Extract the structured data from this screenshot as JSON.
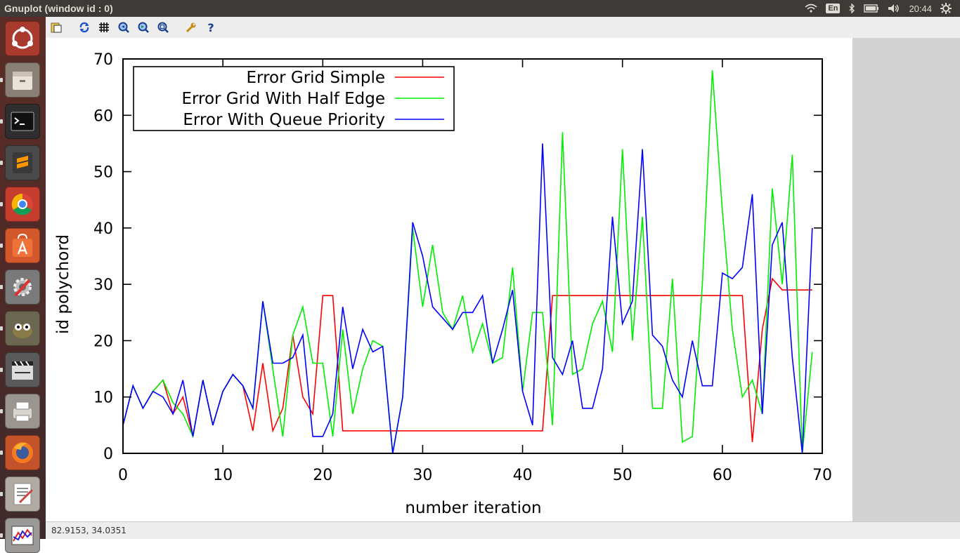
{
  "window": {
    "title": "Gnuplot (window id : 0)"
  },
  "tray": {
    "keyboard": "En",
    "clock": "20:44"
  },
  "launcher": {
    "items": [
      {
        "name": "dash-home-icon",
        "bg": "#a93b2e"
      },
      {
        "name": "files-icon",
        "bg": "#8a7f75"
      },
      {
        "name": "terminal-icon",
        "bg": "#2e2e2e"
      },
      {
        "name": "sublime-text-icon",
        "bg": "#4a4a4a"
      },
      {
        "name": "chrome-icon",
        "bg": "#c53d2f"
      },
      {
        "name": "software-center-icon",
        "bg": "#d4582c"
      },
      {
        "name": "system-settings-icon",
        "bg": "#7a7a7a"
      },
      {
        "name": "gimp-icon",
        "bg": "#6b6650"
      },
      {
        "name": "video-editor-icon",
        "bg": "#5a5a5a"
      },
      {
        "name": "printer-icon",
        "bg": "#9a9590"
      },
      {
        "name": "firefox-icon",
        "bg": "#c4532a"
      },
      {
        "name": "text-editor-icon",
        "bg": "#b0aaa2"
      },
      {
        "name": "gnuplot-icon",
        "bg": "#9b9a98"
      }
    ]
  },
  "toolbar": {
    "buttons": [
      {
        "name": "copy-to-clipboard-icon"
      },
      {
        "name": "replot-icon"
      },
      {
        "name": "grid-icon"
      },
      {
        "name": "zoom-previous-icon"
      },
      {
        "name": "zoom-next-icon"
      },
      {
        "name": "autoscale-icon"
      },
      {
        "name": "config-wrench-icon"
      },
      {
        "name": "help-icon"
      }
    ]
  },
  "statusbar": {
    "coords": "82.9153,  34.0351"
  },
  "chart_data": {
    "type": "line",
    "title": "",
    "xlabel": "number iteration",
    "ylabel": "id polychord",
    "xlim": [
      0,
      70
    ],
    "ylim": [
      0,
      70
    ],
    "xticks": [
      "0",
      "10",
      "20",
      "30",
      "40",
      "50",
      "60",
      "70"
    ],
    "yticks": [
      "0",
      "10",
      "20",
      "30",
      "40",
      "50",
      "60",
      "70"
    ],
    "grid": false,
    "legend": "top-left",
    "x": [
      0,
      1,
      2,
      3,
      4,
      5,
      6,
      7,
      8,
      9,
      10,
      11,
      12,
      13,
      14,
      15,
      16,
      17,
      18,
      19,
      20,
      21,
      22,
      23,
      24,
      25,
      26,
      27,
      28,
      29,
      30,
      31,
      32,
      33,
      34,
      35,
      36,
      37,
      38,
      39,
      40,
      41,
      42,
      43,
      44,
      45,
      46,
      47,
      48,
      49,
      50,
      51,
      52,
      53,
      54,
      55,
      56,
      57,
      58,
      59,
      60,
      61,
      62,
      63,
      64,
      65,
      66,
      67,
      68,
      69
    ],
    "series": [
      {
        "name": "Error Grid Simple",
        "color": "#ff0000",
        "values": [
          5,
          12,
          8,
          11,
          13,
          7,
          10,
          3,
          13,
          5,
          11,
          14,
          12,
          4,
          16,
          4,
          8,
          21,
          10,
          7,
          28,
          28,
          4,
          4,
          4,
          4,
          4,
          4,
          4,
          4,
          4,
          4,
          4,
          4,
          4,
          4,
          4,
          4,
          4,
          4,
          4,
          4,
          4,
          28,
          28,
          28,
          28,
          28,
          28,
          28,
          28,
          28,
          28,
          28,
          28,
          28,
          28,
          28,
          28,
          28,
          28,
          28,
          28,
          2,
          22,
          31,
          29,
          29,
          29,
          29
        ]
      },
      {
        "name": "Error Grid With Half Edge",
        "color": "#00ee00",
        "values": [
          5,
          12,
          8,
          11,
          13,
          9,
          7,
          3,
          13,
          5,
          11,
          14,
          12,
          8,
          27,
          15,
          3,
          21,
          26,
          16,
          16,
          3,
          22,
          7,
          15,
          20,
          19,
          0,
          10,
          40,
          26,
          37,
          25,
          22,
          28,
          18,
          23,
          16,
          17,
          33,
          11,
          25,
          25,
          5,
          57,
          14,
          15,
          23,
          27,
          18,
          54,
          20,
          42,
          8,
          8,
          31,
          2,
          3,
          30,
          68,
          43,
          22,
          10,
          13,
          7,
          47,
          30,
          53,
          0,
          18
        ]
      },
      {
        "name": "Error With Queue Priority",
        "color": "#0000ff",
        "values": [
          5,
          12,
          8,
          11,
          10,
          7,
          13,
          3,
          13,
          5,
          11,
          14,
          12,
          8,
          27,
          16,
          16,
          17,
          21,
          3,
          3,
          7,
          26,
          15,
          22,
          18,
          19,
          0,
          10,
          41,
          35,
          26,
          24,
          22,
          25,
          25,
          28,
          16,
          22,
          29,
          11,
          5,
          55,
          17,
          14,
          20,
          8,
          8,
          15,
          42,
          23,
          27,
          54,
          21,
          19,
          13,
          10,
          20,
          12,
          12,
          32,
          31,
          33,
          46,
          7,
          37,
          41,
          17,
          0,
          40
        ]
      }
    ]
  }
}
